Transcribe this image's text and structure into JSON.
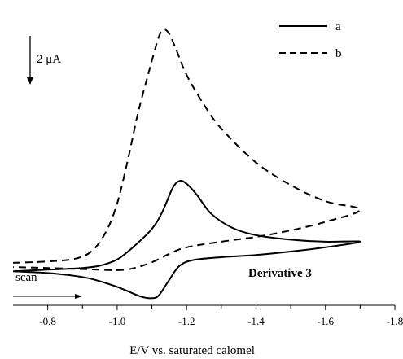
{
  "chart_data": {
    "type": "line",
    "title": "",
    "xlabel": "E/V vs. saturated calomel",
    "ylabel": "",
    "xlim": [
      -0.7,
      -1.8
    ],
    "ylim": [
      -1.2,
      9.6
    ],
    "x_ticks": [
      -0.8,
      -1.0,
      -1.2,
      -1.4,
      -1.6,
      -1.8
    ],
    "grid": false,
    "legend": {
      "placement": "top-right",
      "entries": [
        {
          "label": "a",
          "style": "solid"
        },
        {
          "label": "b",
          "style": "dashed"
        }
      ]
    },
    "scale_bar": {
      "label": "2 μA",
      "value_uA": 2
    },
    "annotations": {
      "scan_label": "scan",
      "sample_label": "Derivative 3"
    },
    "series": [
      {
        "key": "a",
        "style": "solid",
        "color": "#000000",
        "points": [
          [
            -0.7,
            0.0
          ],
          [
            -0.8,
            0.06
          ],
          [
            -0.9,
            0.12
          ],
          [
            -0.95,
            0.2
          ],
          [
            -1.0,
            0.42
          ],
          [
            -1.05,
            0.9
          ],
          [
            -1.1,
            1.5
          ],
          [
            -1.13,
            2.1
          ],
          [
            -1.16,
            2.95
          ],
          [
            -1.18,
            3.2
          ],
          [
            -1.2,
            3.1
          ],
          [
            -1.23,
            2.7
          ],
          [
            -1.27,
            2.05
          ],
          [
            -1.33,
            1.55
          ],
          [
            -1.4,
            1.28
          ],
          [
            -1.5,
            1.12
          ],
          [
            -1.6,
            1.05
          ],
          [
            -1.7,
            1.05
          ],
          [
            -1.6,
            0.85
          ],
          [
            -1.5,
            0.7
          ],
          [
            -1.4,
            0.58
          ],
          [
            -1.3,
            0.5
          ],
          [
            -1.22,
            0.4
          ],
          [
            -1.18,
            0.2
          ],
          [
            -1.15,
            -0.3
          ],
          [
            -1.12,
            -0.85
          ],
          [
            -1.1,
            -0.95
          ],
          [
            -1.07,
            -0.9
          ],
          [
            -1.03,
            -0.7
          ],
          [
            -1.0,
            -0.55
          ],
          [
            -0.95,
            -0.35
          ],
          [
            -0.9,
            -0.2
          ],
          [
            -0.8,
            -0.06
          ],
          [
            -0.7,
            0.0
          ]
        ]
      },
      {
        "key": "b",
        "style": "dashed",
        "color": "#000000",
        "points": [
          [
            -0.7,
            0.3
          ],
          [
            -0.8,
            0.35
          ],
          [
            -0.88,
            0.45
          ],
          [
            -0.93,
            0.75
          ],
          [
            -0.97,
            1.45
          ],
          [
            -1.0,
            2.4
          ],
          [
            -1.03,
            3.9
          ],
          [
            -1.06,
            5.6
          ],
          [
            -1.09,
            7.0
          ],
          [
            -1.12,
            8.3
          ],
          [
            -1.135,
            8.55
          ],
          [
            -1.15,
            8.4
          ],
          [
            -1.17,
            7.85
          ],
          [
            -1.2,
            6.95
          ],
          [
            -1.25,
            5.9
          ],
          [
            -1.3,
            5.05
          ],
          [
            -1.4,
            3.85
          ],
          [
            -1.5,
            3.05
          ],
          [
            -1.6,
            2.48
          ],
          [
            -1.7,
            2.18
          ],
          [
            -1.6,
            1.75
          ],
          [
            -1.5,
            1.45
          ],
          [
            -1.4,
            1.22
          ],
          [
            -1.3,
            1.05
          ],
          [
            -1.2,
            0.85
          ],
          [
            -1.15,
            0.62
          ],
          [
            -1.1,
            0.32
          ],
          [
            -1.05,
            0.12
          ],
          [
            -1.0,
            0.04
          ],
          [
            -0.9,
            0.08
          ],
          [
            -0.8,
            0.12
          ],
          [
            -0.7,
            0.15
          ]
        ]
      }
    ]
  }
}
